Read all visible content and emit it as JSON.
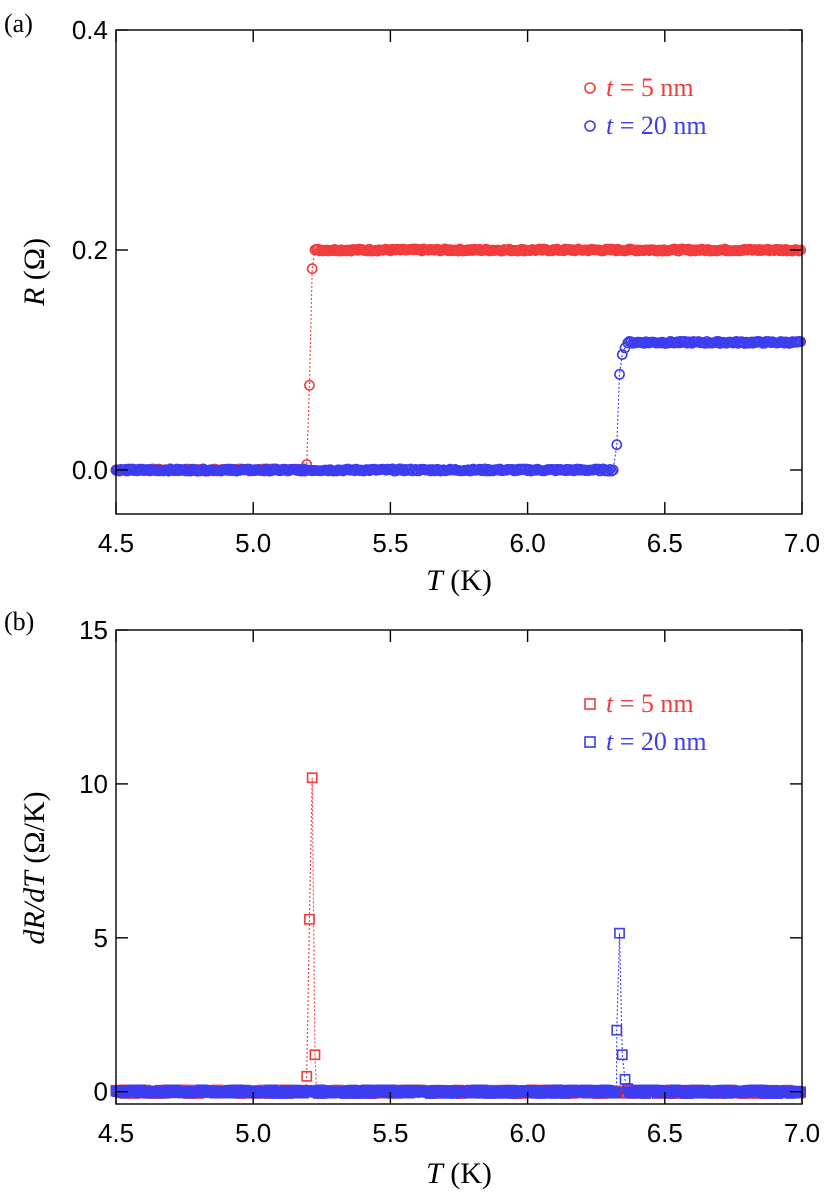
{
  "chart_data": [
    {
      "panel": "(a)",
      "type": "scatter",
      "xlabel": "T (K)",
      "xlabel_var": "T",
      "xlabel_unit": " (K)",
      "ylabel": "R (Ω)",
      "ylabel_var": "R",
      "ylabel_unit": " (Ω)",
      "xlim": [
        4.5,
        7.0
      ],
      "ylim": [
        -0.04,
        0.4
      ],
      "xticks": [
        "4.5",
        "5.0",
        "5.5",
        "6.0",
        "6.5",
        "7.0"
      ],
      "yticks": [
        "0.0",
        "0.2",
        "0.4"
      ],
      "grid": false,
      "legend_position": "top-right",
      "series": [
        {
          "name": "t = 5 nm",
          "name_var": "t",
          "name_rest": " = 5 nm",
          "color": "#f23c3c",
          "marker": "circle",
          "flat_low": {
            "x_from": 4.5,
            "x_to": 5.19,
            "y": 0.0
          },
          "transition": [
            {
              "x": 5.195,
              "y": 0.005
            },
            {
              "x": 5.205,
              "y": 0.077
            },
            {
              "x": 5.215,
              "y": 0.183
            }
          ],
          "flat_high": {
            "x_from": 5.225,
            "x_to": 7.0,
            "y": 0.2
          }
        },
        {
          "name": "t = 20 nm",
          "name_var": "t",
          "name_rest": " = 20 nm",
          "color": "#3c3cf0",
          "marker": "circle",
          "flat_low": {
            "x_from": 4.5,
            "x_to": 6.315,
            "y": 0.0
          },
          "transition": [
            {
              "x": 6.325,
              "y": 0.023
            },
            {
              "x": 6.335,
              "y": 0.087
            },
            {
              "x": 6.345,
              "y": 0.105
            },
            {
              "x": 6.355,
              "y": 0.111
            }
          ],
          "flat_high": {
            "x_from": 6.365,
            "x_to": 7.0,
            "y": 0.116
          }
        }
      ]
    },
    {
      "panel": "(b)",
      "type": "scatter",
      "xlabel": "T (K)",
      "xlabel_var": "T",
      "xlabel_unit": " (K)",
      "ylabel": "dR/dT (Ω/K)",
      "ylabel_var": "dR/dT",
      "ylabel_unit": " (Ω/K)",
      "xlim": [
        4.5,
        7.0
      ],
      "ylim": [
        -0.4,
        15
      ],
      "xticks": [
        "4.5",
        "5.0",
        "5.5",
        "6.0",
        "6.5",
        "7.0"
      ],
      "yticks": [
        "0",
        "5",
        "10",
        "15"
      ],
      "grid": false,
      "legend_position": "top-right",
      "series": [
        {
          "name": "t = 5 nm",
          "name_var": "t",
          "name_rest": " = 5 nm",
          "color": "#f23c3c",
          "marker": "square",
          "baseline": {
            "x_from": 4.5,
            "x_to": 7.0,
            "y": 0.0
          },
          "peak": [
            {
              "x": 5.195,
              "y": 0.5
            },
            {
              "x": 5.205,
              "y": 5.6
            },
            {
              "x": 5.215,
              "y": 10.2
            },
            {
              "x": 5.225,
              "y": 1.2
            }
          ]
        },
        {
          "name": "t = 20 nm",
          "name_var": "t",
          "name_rest": " = 20 nm",
          "color": "#3c3cf0",
          "marker": "square",
          "baseline": {
            "x_from": 4.5,
            "x_to": 7.0,
            "y": 0.0
          },
          "peak": [
            {
              "x": 6.325,
              "y": 2.0
            },
            {
              "x": 6.335,
              "y": 5.15
            },
            {
              "x": 6.345,
              "y": 1.2
            },
            {
              "x": 6.355,
              "y": 0.4
            },
            {
              "x": 6.365,
              "y": 0.1
            }
          ]
        }
      ]
    }
  ]
}
